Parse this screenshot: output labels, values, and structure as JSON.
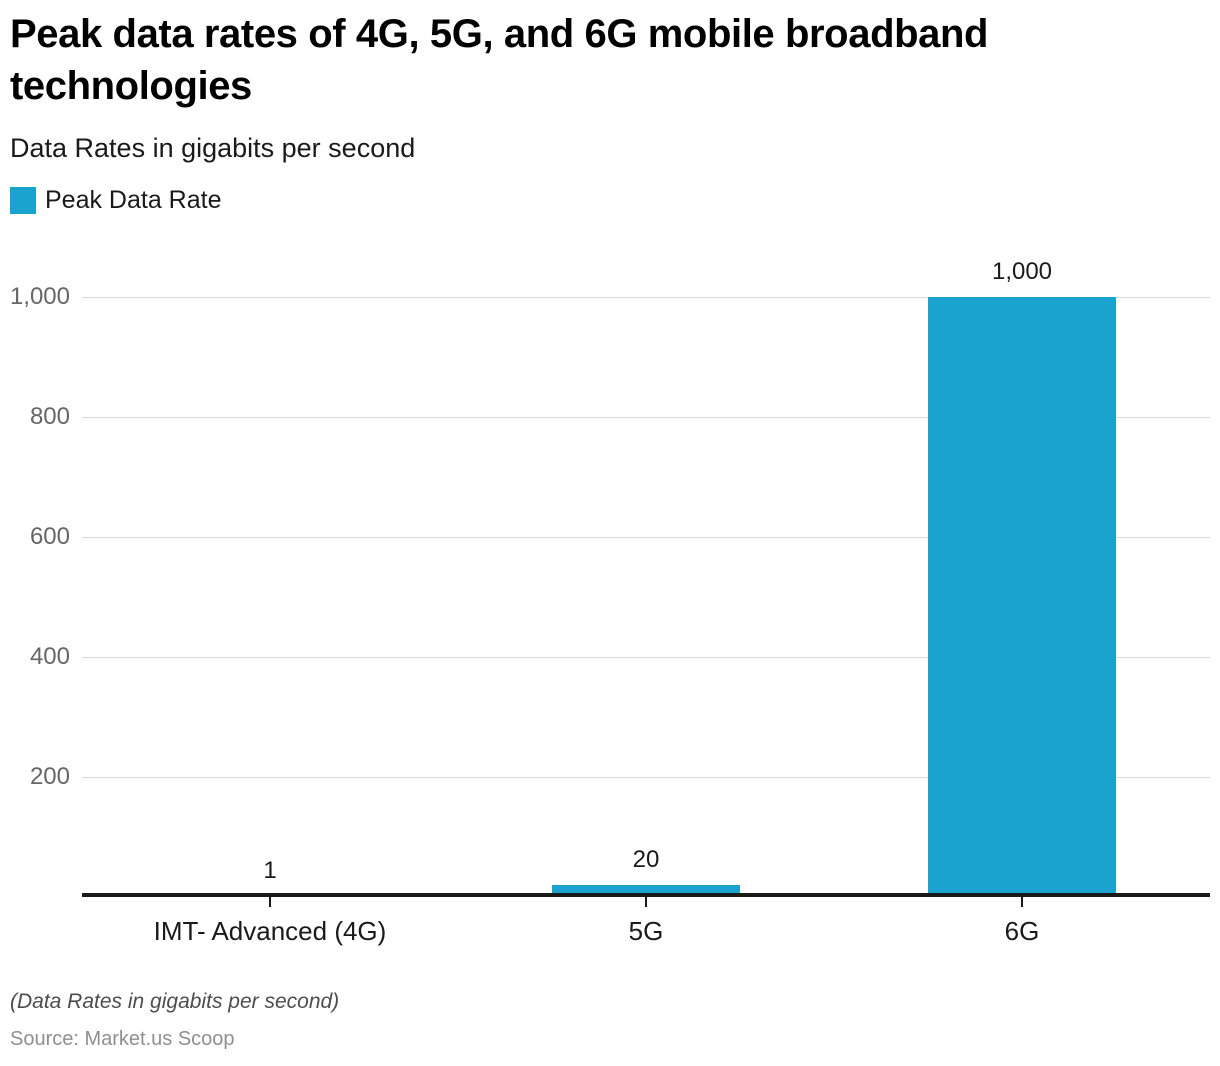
{
  "header": {
    "title": "Peak data rates of 4G, 5G, and 6G mobile broadband technologies",
    "title_lines": [
      "Peak data rates of 4G, 5G, and 6G mobile broadband",
      "technologies"
    ],
    "subtitle": "Data Rates in gigabits per second"
  },
  "legend": {
    "label": "Peak Data Rate",
    "swatch_color": "#1aa3ce"
  },
  "chart_data": {
    "type": "bar",
    "title": "Peak data rates of 4G, 5G, and 6G mobile broadband technologies",
    "subtitle": "Data Rates in gigabits per second",
    "categories": [
      "IMT- Advanced (4G)",
      "5G",
      "6G"
    ],
    "series": [
      {
        "name": "Peak Data Rate",
        "values": [
          1,
          20,
          1000
        ]
      }
    ],
    "value_labels": [
      "1",
      "20",
      "1,000"
    ],
    "xlabel": "",
    "ylabel": "",
    "ylim": [
      0,
      1000
    ],
    "yticks": [
      200,
      400,
      600,
      800,
      1000
    ],
    "ytick_labels": [
      "200",
      "400",
      "600",
      "800",
      "1,000"
    ],
    "grid": true,
    "legend_position": "top-left",
    "bar_color": "#1aa3ce",
    "axis_color": "#1a1a1a",
    "gridline_color": "#d9d9d9"
  },
  "footer": {
    "note": "(Data Rates in gigabits per second)",
    "source": "Source: Market.us Scoop"
  }
}
